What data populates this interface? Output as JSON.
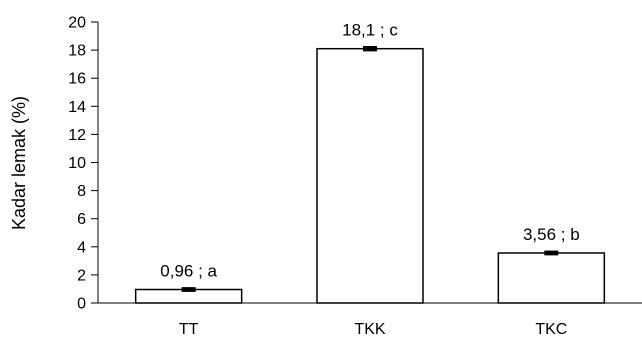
{
  "chart_data": {
    "type": "bar",
    "title": "",
    "xlabel": "",
    "ylabel": "Kadar lemak (%)",
    "ylim": [
      0,
      20
    ],
    "yticks": [
      0,
      2,
      4,
      6,
      8,
      10,
      12,
      14,
      16,
      18,
      20
    ],
    "ytick_labels": [
      "0",
      "2",
      "4",
      "6",
      "8",
      "10",
      "12",
      "14",
      "16",
      "18",
      "20"
    ],
    "categories": [
      "TT",
      "TKK",
      "TKC"
    ],
    "values": [
      0.96,
      18.1,
      3.56
    ],
    "errors": [
      0.1,
      0.12,
      0.1
    ],
    "data_labels": [
      "0,96 ; a",
      "18,1 ; c",
      "3,56 ; b"
    ],
    "grid": false,
    "legend": "none",
    "colors": {
      "bar_fill": "#ffffff",
      "bar_stroke": "#000000",
      "axis": "#000000"
    }
  }
}
